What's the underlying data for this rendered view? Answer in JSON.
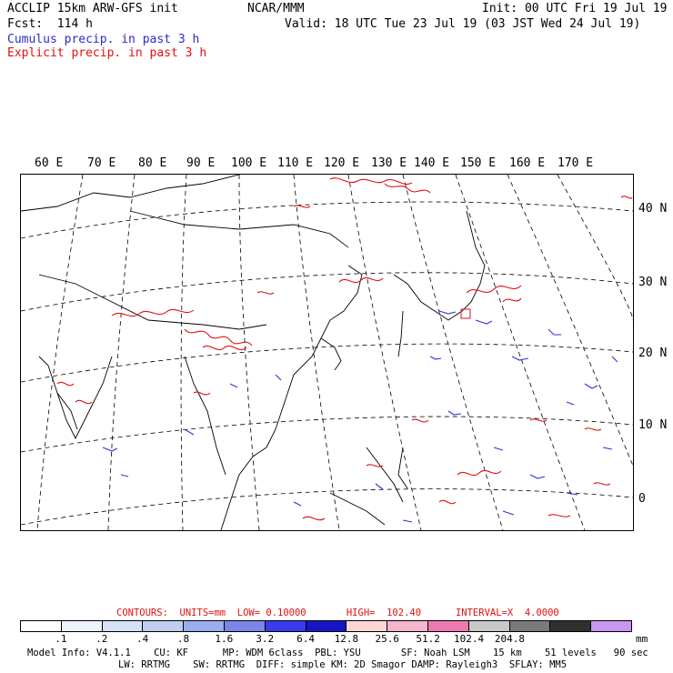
{
  "header": {
    "line1_left": "ACCLIP 15km ARW-GFS init",
    "line1_center": "NCAR/MMM",
    "line1_right": "Init: 00 UTC Fri 19 Jul 19",
    "line2_left": "Fcst:  114 h",
    "line2_right": "Valid: 18 UTC Tue 23 Jul 19 (03 JST Wed 24 Jul 19)",
    "field1": "Cumulus precip. in past 3 h",
    "field2": "Explicit precip. in past 3 h"
  },
  "map": {
    "lon_labels": [
      "60 E",
      "70 E",
      "80 E",
      "90 E",
      "100 E",
      "110 E",
      "120 E",
      "130 E",
      "140 E",
      "150 E",
      "160 E",
      "170 E"
    ],
    "lat_labels": [
      "40 N",
      "30 N",
      "20 N",
      "10 N",
      "0"
    ],
    "cumulus_color": "#3030e0",
    "explicit_color": "#e01010"
  },
  "legend": {
    "contours_line": "CONTOURS:  UNITS=mm  LOW= 0.10000       HIGH=  102.40      INTERVAL=X  4.0000",
    "tick_labels": [
      ".1",
      ".2",
      ".4",
      ".8",
      "1.6",
      "3.2",
      "6.4",
      "12.8",
      "25.6",
      "51.2",
      "102.4",
      "204.8"
    ],
    "units": "mm",
    "colors": [
      "#ffffff",
      "#eef2fb",
      "#d7e2f6",
      "#bfcdf1",
      "#9aaeef",
      "#7a86ea",
      "#3a3aee",
      "#1616c8",
      "#ffd6d6",
      "#f4b6cc",
      "#f07ab0",
      "#c8c8c8",
      "#7a7a7a",
      "#303030",
      "#c898f0"
    ]
  },
  "footer": {
    "line1": "Model Info: V4.1.1    CU: KF      MP: WDM 6class  PBL: YSU       SF: Noah LSM    15 km    51 levels   90 sec",
    "line2": "LW: RRTMG    SW: RRTMG  DIFF: simple KM: 2D Smagor DAMP: Rayleigh3  SFLAY: MM5"
  }
}
